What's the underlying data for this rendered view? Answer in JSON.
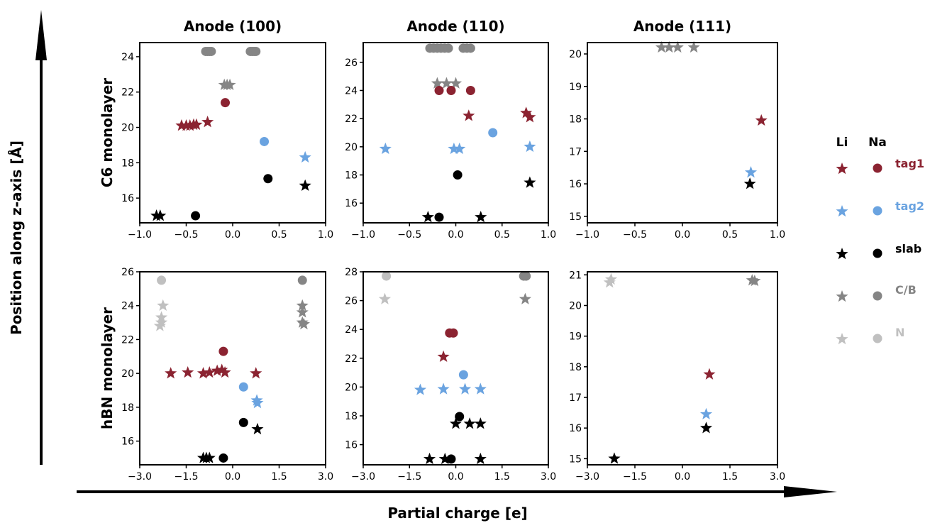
{
  "chart_data": {
    "type": "scatter",
    "xlabel": "Partial charge [e]",
    "ylabel": "Position along z-axis [Å]",
    "column_titles": [
      "Anode (100)",
      "Anode (110)",
      "Anode (111)"
    ],
    "row_titles": [
      "C6 monolayer",
      "hBN monolayer"
    ],
    "legend": {
      "placement": "right",
      "headers": [
        "Li",
        "Na"
      ],
      "entries": [
        {
          "label": "tag1",
          "color": "#8b2331"
        },
        {
          "label": "tag2",
          "color": "#6aa3e0"
        },
        {
          "label": "slab",
          "color": "#000000"
        },
        {
          "label": "C/B",
          "color": "#858585"
        },
        {
          "label": "N",
          "color": "#c0c0c0"
        }
      ]
    },
    "colors": {
      "tag1": "#8b2331",
      "tag2": "#6aa3e0",
      "slab": "#000000",
      "C/B": "#858585",
      "N": "#c0c0c0"
    },
    "panels": [
      {
        "row": 0,
        "col": 0,
        "xlim": [
          -1.0,
          1.0
        ],
        "ylim": [
          14.6,
          24.8
        ],
        "xticks": [
          "−1.0",
          "−0.5",
          "0.0",
          "0.5",
          "1.0"
        ],
        "yticks": [
          "16",
          "18",
          "20",
          "22",
          "24"
        ],
        "points": [
          {
            "x": -0.29,
            "y": 24.3,
            "m": "circle",
            "g": "C/B"
          },
          {
            "x": -0.27,
            "y": 24.3,
            "m": "circle",
            "g": "C/B"
          },
          {
            "x": -0.25,
            "y": 24.3,
            "m": "circle",
            "g": "C/B"
          },
          {
            "x": -0.23,
            "y": 24.3,
            "m": "circle",
            "g": "C/B"
          },
          {
            "x": 0.19,
            "y": 24.3,
            "m": "circle",
            "g": "C/B"
          },
          {
            "x": 0.21,
            "y": 24.3,
            "m": "circle",
            "g": "C/B"
          },
          {
            "x": 0.23,
            "y": 24.3,
            "m": "circle",
            "g": "C/B"
          },
          {
            "x": 0.25,
            "y": 24.3,
            "m": "circle",
            "g": "C/B"
          },
          {
            "x": -0.09,
            "y": 22.4,
            "m": "star",
            "g": "C/B"
          },
          {
            "x": -0.06,
            "y": 22.4,
            "m": "star",
            "g": "C/B"
          },
          {
            "x": -0.03,
            "y": 22.4,
            "m": "star",
            "g": "C/B"
          },
          {
            "x": -0.08,
            "y": 21.4,
            "m": "circle",
            "g": "tag1"
          },
          {
            "x": -0.55,
            "y": 20.1,
            "m": "star",
            "g": "tag1"
          },
          {
            "x": -0.5,
            "y": 20.1,
            "m": "star",
            "g": "tag1"
          },
          {
            "x": -0.46,
            "y": 20.1,
            "m": "star",
            "g": "tag1"
          },
          {
            "x": -0.42,
            "y": 20.15,
            "m": "star",
            "g": "tag1"
          },
          {
            "x": -0.39,
            "y": 20.15,
            "m": "star",
            "g": "tag1"
          },
          {
            "x": -0.27,
            "y": 20.3,
            "m": "star",
            "g": "tag1"
          },
          {
            "x": 0.34,
            "y": 19.2,
            "m": "circle",
            "g": "tag2"
          },
          {
            "x": 0.78,
            "y": 18.3,
            "m": "star",
            "g": "tag2"
          },
          {
            "x": 0.38,
            "y": 17.1,
            "m": "circle",
            "g": "slab"
          },
          {
            "x": 0.78,
            "y": 16.7,
            "m": "star",
            "g": "slab"
          },
          {
            "x": -0.82,
            "y": 15.0,
            "m": "star",
            "g": "slab"
          },
          {
            "x": -0.78,
            "y": 15.0,
            "m": "star",
            "g": "slab"
          },
          {
            "x": -0.4,
            "y": 15.0,
            "m": "circle",
            "g": "slab"
          }
        ]
      },
      {
        "row": 0,
        "col": 1,
        "xlim": [
          -1.0,
          1.0
        ],
        "ylim": [
          14.6,
          27.4
        ],
        "xticks": [
          "−1.0",
          "−0.5",
          "0.0",
          "0.5",
          "1.0"
        ],
        "yticks": [
          "16",
          "18",
          "20",
          "22",
          "24",
          "26"
        ],
        "points": [
          {
            "x": -0.28,
            "y": 27.0,
            "m": "circle",
            "g": "C/B"
          },
          {
            "x": -0.24,
            "y": 27.0,
            "m": "circle",
            "g": "C/B"
          },
          {
            "x": -0.2,
            "y": 27.0,
            "m": "circle",
            "g": "C/B"
          },
          {
            "x": -0.16,
            "y": 27.0,
            "m": "circle",
            "g": "C/B"
          },
          {
            "x": -0.12,
            "y": 27.0,
            "m": "circle",
            "g": "C/B"
          },
          {
            "x": -0.08,
            "y": 27.0,
            "m": "circle",
            "g": "C/B"
          },
          {
            "x": 0.08,
            "y": 27.0,
            "m": "circle",
            "g": "C/B"
          },
          {
            "x": 0.12,
            "y": 27.0,
            "m": "circle",
            "g": "C/B"
          },
          {
            "x": 0.16,
            "y": 27.0,
            "m": "circle",
            "g": "C/B"
          },
          {
            "x": -0.2,
            "y": 24.5,
            "m": "star",
            "g": "C/B"
          },
          {
            "x": -0.1,
            "y": 24.5,
            "m": "star",
            "g": "C/B"
          },
          {
            "x": 0.0,
            "y": 24.5,
            "m": "star",
            "g": "C/B"
          },
          {
            "x": -0.18,
            "y": 24.0,
            "m": "circle",
            "g": "tag1"
          },
          {
            "x": -0.05,
            "y": 24.0,
            "m": "circle",
            "g": "tag1"
          },
          {
            "x": 0.16,
            "y": 24.0,
            "m": "circle",
            "g": "tag1"
          },
          {
            "x": 0.14,
            "y": 22.2,
            "m": "star",
            "g": "tag1"
          },
          {
            "x": 0.76,
            "y": 22.4,
            "m": "star",
            "g": "tag1"
          },
          {
            "x": 0.8,
            "y": 22.1,
            "m": "star",
            "g": "tag1"
          },
          {
            "x": 0.4,
            "y": 21.0,
            "m": "circle",
            "g": "tag2"
          },
          {
            "x": -0.76,
            "y": 19.85,
            "m": "star",
            "g": "tag2"
          },
          {
            "x": -0.02,
            "y": 19.85,
            "m": "star",
            "g": "tag2"
          },
          {
            "x": 0.04,
            "y": 19.85,
            "m": "star",
            "g": "tag2"
          },
          {
            "x": 0.8,
            "y": 20.0,
            "m": "star",
            "g": "tag2"
          },
          {
            "x": 0.02,
            "y": 18.0,
            "m": "circle",
            "g": "slab"
          },
          {
            "x": 0.8,
            "y": 17.45,
            "m": "star",
            "g": "slab"
          },
          {
            "x": -0.3,
            "y": 15.0,
            "m": "star",
            "g": "slab"
          },
          {
            "x": -0.18,
            "y": 15.0,
            "m": "circle",
            "g": "slab"
          },
          {
            "x": 0.27,
            "y": 15.0,
            "m": "star",
            "g": "slab"
          }
        ]
      },
      {
        "row": 0,
        "col": 2,
        "xlim": [
          -1.0,
          1.0
        ],
        "ylim": [
          14.8,
          20.35
        ],
        "xticks": [
          "−1.0",
          "−0.5",
          "0.0",
          "0.5",
          "1.0"
        ],
        "yticks": [
          "15",
          "16",
          "17",
          "18",
          "19",
          "20"
        ],
        "points": [
          {
            "x": -0.22,
            "y": 20.2,
            "m": "star",
            "g": "C/B"
          },
          {
            "x": -0.14,
            "y": 20.2,
            "m": "star",
            "g": "C/B"
          },
          {
            "x": -0.05,
            "y": 20.2,
            "m": "star",
            "g": "C/B"
          },
          {
            "x": 0.12,
            "y": 20.2,
            "m": "star",
            "g": "C/B"
          },
          {
            "x": 0.83,
            "y": 17.95,
            "m": "star",
            "g": "tag1"
          },
          {
            "x": 0.72,
            "y": 16.35,
            "m": "star",
            "g": "tag2"
          },
          {
            "x": 0.71,
            "y": 16.0,
            "m": "star",
            "g": "slab"
          }
        ]
      },
      {
        "row": 1,
        "col": 0,
        "xlim": [
          -3.0,
          3.0
        ],
        "ylim": [
          14.6,
          26.0
        ],
        "xticks": [
          "−3.0",
          "−1.5",
          "0.0",
          "1.5",
          "3.0"
        ],
        "yticks": [
          "16",
          "18",
          "20",
          "22",
          "24",
          "26"
        ],
        "points": [
          {
            "x": -2.3,
            "y": 25.5,
            "m": "circle",
            "g": "N"
          },
          {
            "x": -2.25,
            "y": 24.0,
            "m": "star",
            "g": "N"
          },
          {
            "x": -2.3,
            "y": 23.3,
            "m": "star",
            "g": "N"
          },
          {
            "x": -2.3,
            "y": 23.0,
            "m": "star",
            "g": "N"
          },
          {
            "x": -2.35,
            "y": 22.8,
            "m": "star",
            "g": "N"
          },
          {
            "x": 2.25,
            "y": 25.5,
            "m": "circle",
            "g": "C/B"
          },
          {
            "x": 2.25,
            "y": 24.0,
            "m": "star",
            "g": "C/B"
          },
          {
            "x": 2.25,
            "y": 23.6,
            "m": "star",
            "g": "C/B"
          },
          {
            "x": 2.25,
            "y": 23.0,
            "m": "star",
            "g": "C/B"
          },
          {
            "x": 2.3,
            "y": 22.9,
            "m": "star",
            "g": "C/B"
          },
          {
            "x": -0.3,
            "y": 21.3,
            "m": "circle",
            "g": "tag1"
          },
          {
            "x": -2.0,
            "y": 20.0,
            "m": "star",
            "g": "tag1"
          },
          {
            "x": -1.45,
            "y": 20.05,
            "m": "star",
            "g": "tag1"
          },
          {
            "x": -0.95,
            "y": 20.0,
            "m": "star",
            "g": "tag1"
          },
          {
            "x": -0.75,
            "y": 20.05,
            "m": "star",
            "g": "tag1"
          },
          {
            "x": -0.5,
            "y": 20.15,
            "m": "star",
            "g": "tag1"
          },
          {
            "x": -0.35,
            "y": 20.2,
            "m": "star",
            "g": "tag1"
          },
          {
            "x": -0.25,
            "y": 20.05,
            "m": "star",
            "g": "tag1"
          },
          {
            "x": 0.75,
            "y": 20.0,
            "m": "star",
            "g": "tag1"
          },
          {
            "x": 0.35,
            "y": 19.2,
            "m": "circle",
            "g": "tag2"
          },
          {
            "x": 0.78,
            "y": 18.4,
            "m": "star",
            "g": "tag2"
          },
          {
            "x": 0.8,
            "y": 18.25,
            "m": "star",
            "g": "tag2"
          },
          {
            "x": 0.35,
            "y": 17.1,
            "m": "circle",
            "g": "slab"
          },
          {
            "x": 0.8,
            "y": 16.7,
            "m": "star",
            "g": "slab"
          },
          {
            "x": -0.95,
            "y": 15.0,
            "m": "star",
            "g": "slab"
          },
          {
            "x": -0.85,
            "y": 15.0,
            "m": "star",
            "g": "slab"
          },
          {
            "x": -0.75,
            "y": 15.0,
            "m": "star",
            "g": "slab"
          },
          {
            "x": -0.3,
            "y": 15.0,
            "m": "circle",
            "g": "slab"
          }
        ]
      },
      {
        "row": 1,
        "col": 1,
        "xlim": [
          -3.0,
          3.0
        ],
        "ylim": [
          14.6,
          28.0
        ],
        "xticks": [
          "−3.0",
          "−1.5",
          "0.0",
          "1.5",
          "3.0"
        ],
        "yticks": [
          "16",
          "18",
          "20",
          "22",
          "24",
          "26",
          "28"
        ],
        "points": [
          {
            "x": -2.25,
            "y": 27.7,
            "m": "circle",
            "g": "N"
          },
          {
            "x": -2.3,
            "y": 26.1,
            "m": "star",
            "g": "N"
          },
          {
            "x": 2.2,
            "y": 27.7,
            "m": "circle",
            "g": "C/B"
          },
          {
            "x": 2.28,
            "y": 27.7,
            "m": "circle",
            "g": "C/B"
          },
          {
            "x": 2.25,
            "y": 26.1,
            "m": "star",
            "g": "C/B"
          },
          {
            "x": -0.2,
            "y": 23.75,
            "m": "circle",
            "g": "tag1"
          },
          {
            "x": -0.08,
            "y": 23.75,
            "m": "circle",
            "g": "tag1"
          },
          {
            "x": -0.4,
            "y": 22.1,
            "m": "star",
            "g": "tag1"
          },
          {
            "x": 0.25,
            "y": 20.85,
            "m": "circle",
            "g": "tag2"
          },
          {
            "x": -1.15,
            "y": 19.8,
            "m": "star",
            "g": "tag2"
          },
          {
            "x": -0.4,
            "y": 19.85,
            "m": "star",
            "g": "tag2"
          },
          {
            "x": 0.3,
            "y": 19.85,
            "m": "star",
            "g": "tag2"
          },
          {
            "x": 0.8,
            "y": 19.85,
            "m": "star",
            "g": "tag2"
          },
          {
            "x": 0.12,
            "y": 17.95,
            "m": "circle",
            "g": "slab"
          },
          {
            "x": 0.0,
            "y": 17.45,
            "m": "star",
            "g": "slab"
          },
          {
            "x": 0.45,
            "y": 17.45,
            "m": "star",
            "g": "slab"
          },
          {
            "x": 0.8,
            "y": 17.45,
            "m": "star",
            "g": "slab"
          },
          {
            "x": -0.85,
            "y": 15.0,
            "m": "star",
            "g": "slab"
          },
          {
            "x": -0.35,
            "y": 15.0,
            "m": "star",
            "g": "slab"
          },
          {
            "x": -0.15,
            "y": 15.0,
            "m": "circle",
            "g": "slab"
          },
          {
            "x": 0.8,
            "y": 15.0,
            "m": "star",
            "g": "slab"
          }
        ]
      },
      {
        "row": 1,
        "col": 2,
        "xlim": [
          -3.0,
          3.0
        ],
        "ylim": [
          14.8,
          21.1
        ],
        "xticks": [
          "−3.0",
          "−1.5",
          "0.0",
          "1.5",
          "3.0"
        ],
        "yticks": [
          "15",
          "16",
          "17",
          "18",
          "19",
          "20",
          "21"
        ],
        "points": [
          {
            "x": -2.25,
            "y": 20.85,
            "m": "star",
            "g": "N"
          },
          {
            "x": -2.3,
            "y": 20.75,
            "m": "star",
            "g": "N"
          },
          {
            "x": 2.2,
            "y": 20.82,
            "m": "star",
            "g": "C/B"
          },
          {
            "x": 2.28,
            "y": 20.8,
            "m": "star",
            "g": "C/B"
          },
          {
            "x": 0.85,
            "y": 17.75,
            "m": "star",
            "g": "tag1"
          },
          {
            "x": 0.75,
            "y": 16.45,
            "m": "star",
            "g": "tag2"
          },
          {
            "x": 0.75,
            "y": 16.0,
            "m": "star",
            "g": "slab"
          },
          {
            "x": -2.15,
            "y": 15.0,
            "m": "star",
            "g": "slab"
          }
        ]
      }
    ]
  }
}
